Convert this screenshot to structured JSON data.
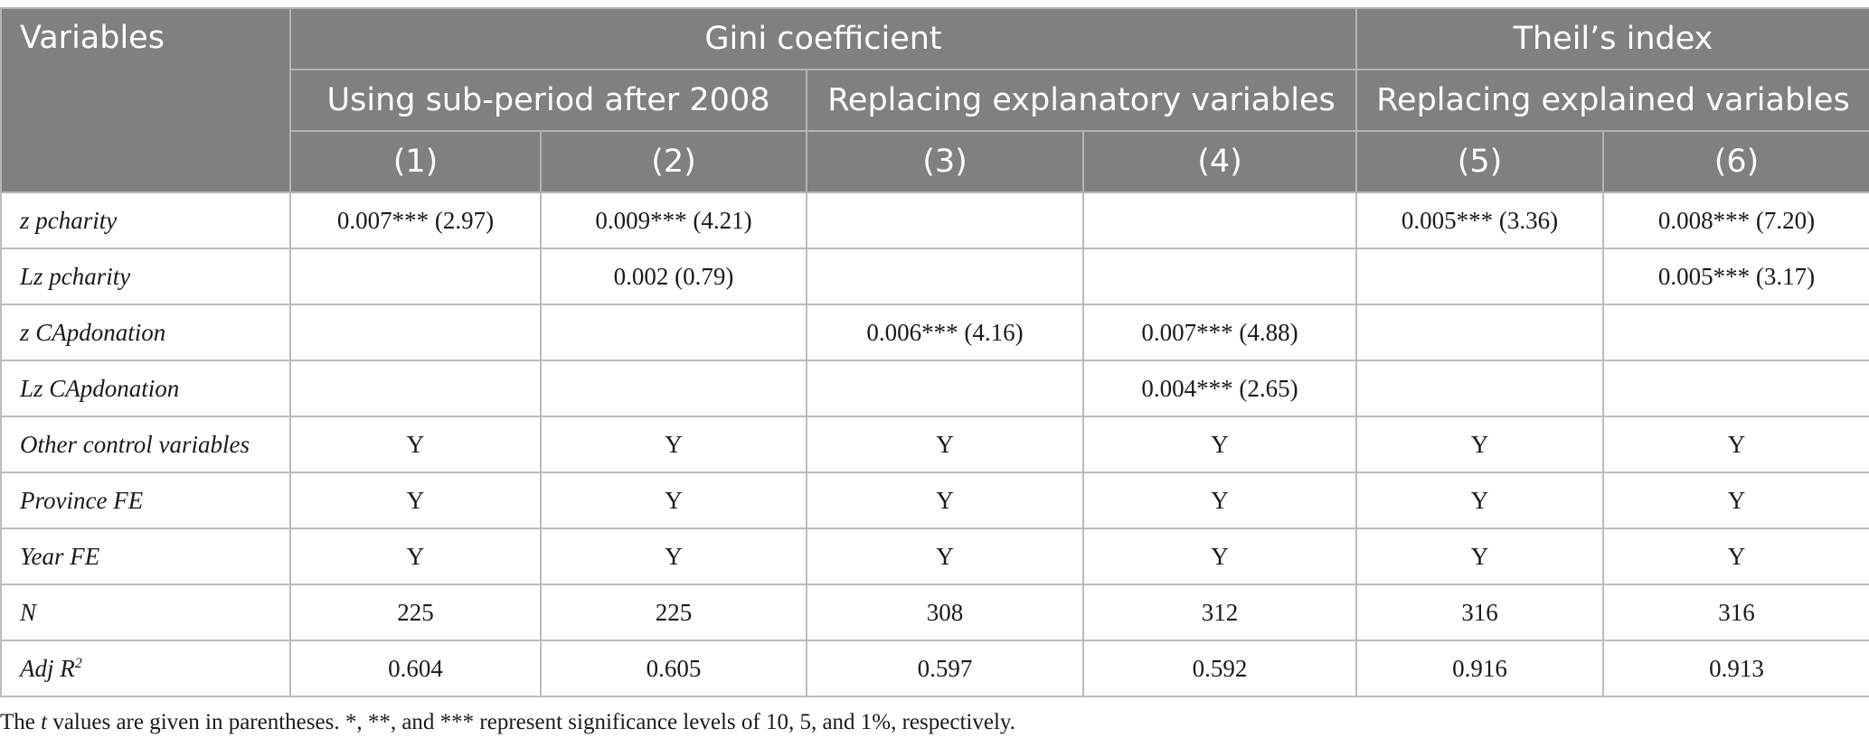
{
  "header": {
    "variables": "Variables",
    "group_gini": "Gini coefficient",
    "group_theil": "Theil’s index",
    "sub_period": "Using sub-period after 2008",
    "sub_replacing_explanatory": "Replacing explanatory variables",
    "sub_replacing_explained": "Replacing explained variables",
    "columns": [
      "(1)",
      "(2)",
      "(3)",
      "(4)",
      "(5)",
      "(6)"
    ]
  },
  "rows": [
    {
      "label": "z pcharity",
      "cells": [
        "0.007*** (2.97)",
        "0.009*** (4.21)",
        "",
        "",
        "0.005*** (3.36)",
        "0.008*** (7.20)"
      ]
    },
    {
      "label": "Lz pcharity",
      "cells": [
        "",
        "0.002 (0.79)",
        "",
        "",
        "",
        "0.005*** (3.17)"
      ]
    },
    {
      "label": "z CApdonation",
      "cells": [
        "",
        "",
        "0.006*** (4.16)",
        "0.007*** (4.88)",
        "",
        ""
      ]
    },
    {
      "label": "Lz CApdonation",
      "cells": [
        "",
        "",
        "",
        "0.004*** (2.65)",
        "",
        ""
      ]
    },
    {
      "label": "Other control variables",
      "cells": [
        "Y",
        "Y",
        "Y",
        "Y",
        "Y",
        "Y"
      ]
    },
    {
      "label": "Province FE",
      "cells": [
        "Y",
        "Y",
        "Y",
        "Y",
        "Y",
        "Y"
      ]
    },
    {
      "label": "Year FE",
      "cells": [
        "Y",
        "Y",
        "Y",
        "Y",
        "Y",
        "Y"
      ]
    },
    {
      "label": "N",
      "cells": [
        "225",
        "225",
        "308",
        "312",
        "316",
        "316"
      ]
    },
    {
      "label": "Adj R",
      "label_sup": "2",
      "cells": [
        "0.604",
        "0.605",
        "0.597",
        "0.592",
        "0.916",
        "0.913"
      ]
    }
  ],
  "note": {
    "prefix": "The ",
    "t_symbol": "t",
    "suffix": " values are given in parentheses. *, **, and *** represent significance levels of 10, 5, and 1%, respectively."
  }
}
